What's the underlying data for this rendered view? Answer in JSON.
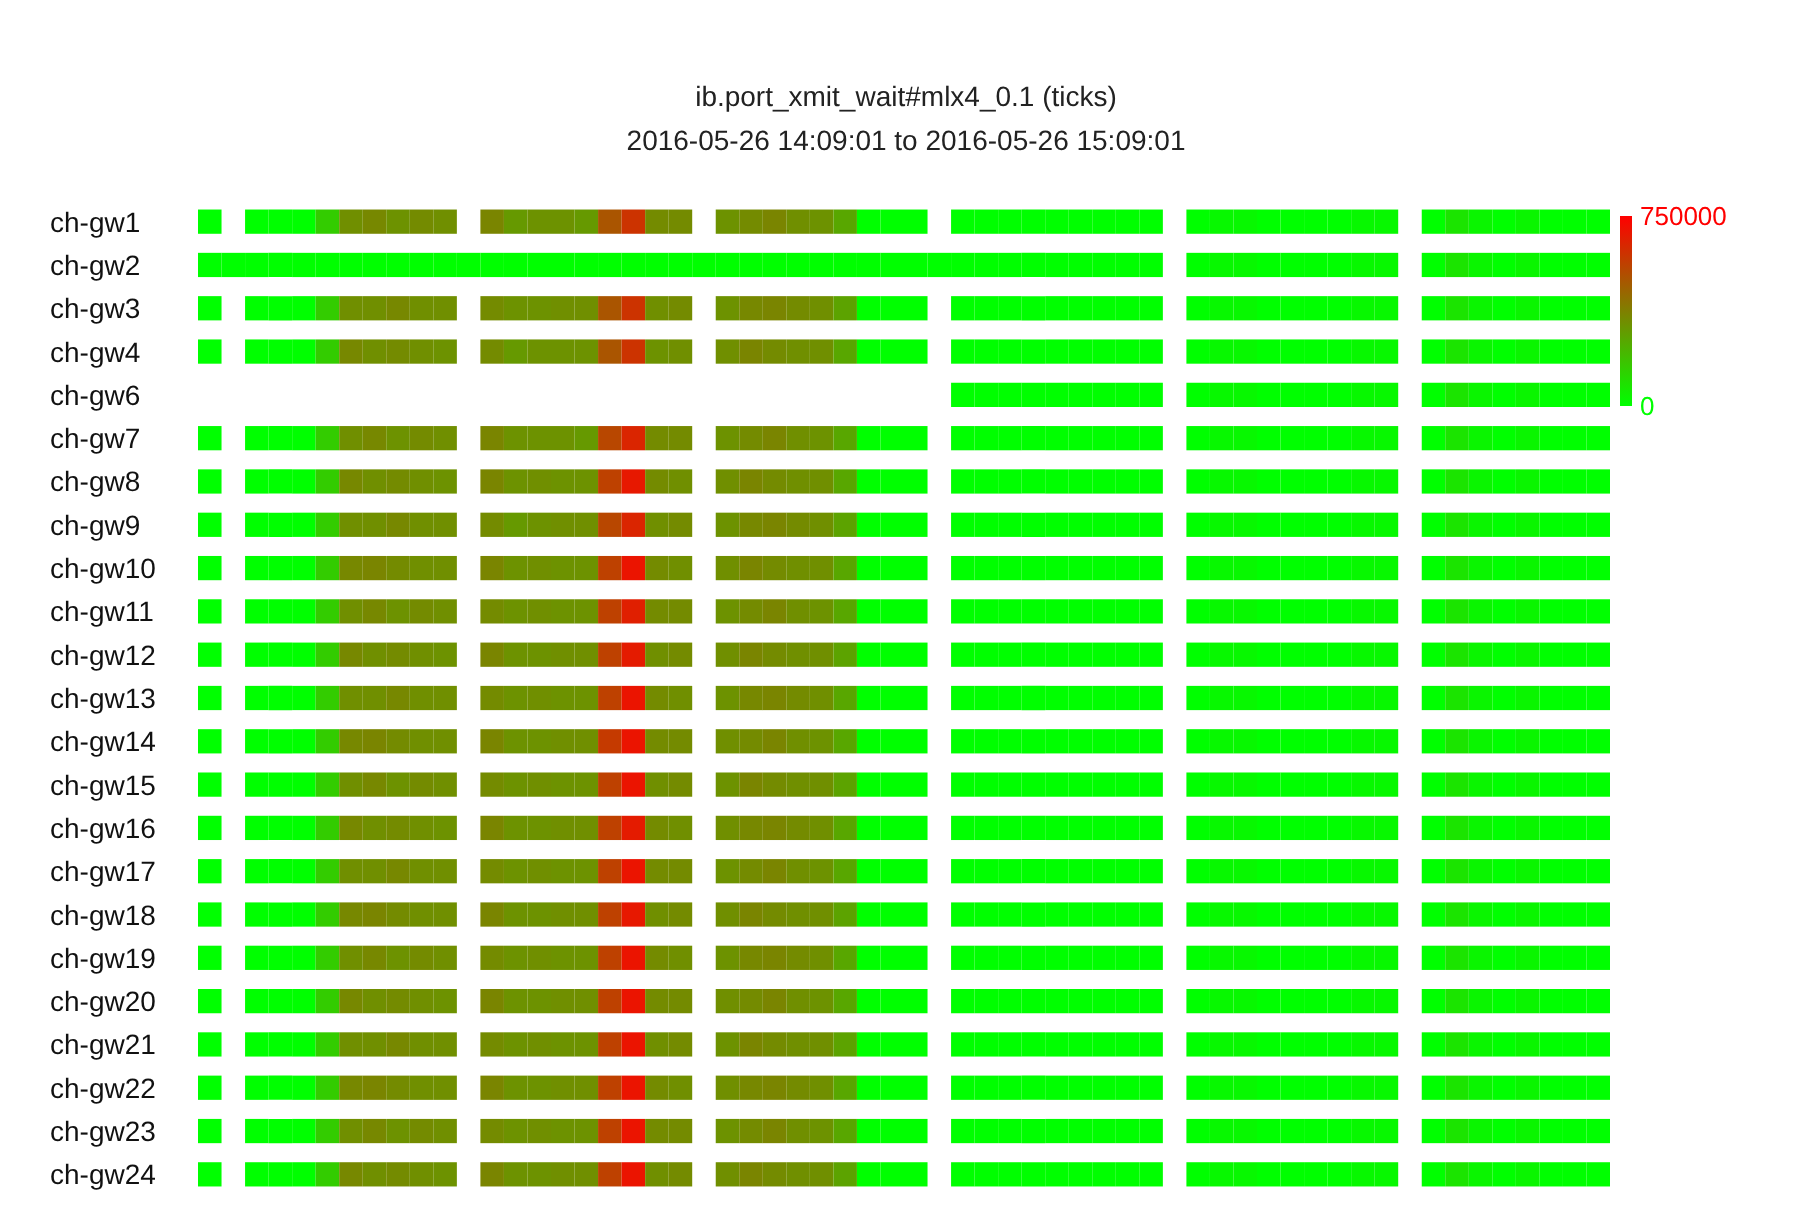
{
  "chart_data": {
    "type": "heatmap",
    "title": "ib.port_xmit_wait#mlx4_0.1 (ticks)",
    "subtitle": "2016-05-26 14:09:01 to 2016-05-26 15:09:01",
    "categories": [
      null,
      null,
      null,
      null,
      null,
      null,
      null,
      null,
      null,
      null,
      null,
      null,
      null,
      null,
      null,
      null,
      null,
      null,
      null,
      null,
      null,
      null,
      null,
      null,
      null,
      null,
      null,
      null,
      null,
      null,
      null,
      null,
      null,
      null,
      null,
      null,
      null,
      null,
      null,
      null,
      null,
      null,
      null,
      null,
      null,
      null,
      null,
      null,
      null,
      null,
      null,
      null,
      null,
      null,
      null,
      null,
      null,
      null,
      null,
      null
    ],
    "y_categories": [
      "ch-gw1",
      "ch-gw2",
      "ch-gw3",
      "ch-gw4",
      "ch-gw6",
      "ch-gw7",
      "ch-gw8",
      "ch-gw9",
      "ch-gw10",
      "ch-gw11",
      "ch-gw12",
      "ch-gw13",
      "ch-gw14",
      "ch-gw15",
      "ch-gw16",
      "ch-gw17",
      "ch-gw18",
      "ch-gw19",
      "ch-gw20",
      "ch-gw21",
      "ch-gw22",
      "ch-gw23",
      "ch-gw24"
    ],
    "cells": [
      [
        0,
        null,
        0,
        0,
        0,
        150000,
        330000,
        350000,
        320000,
        340000,
        330000,
        null,
        360000,
        300000,
        320000,
        320000,
        300000,
        500000,
        600000,
        340000,
        340000,
        null,
        320000,
        340000,
        360000,
        330000,
        320000,
        260000,
        0,
        0,
        0,
        null,
        0,
        0,
        0,
        0,
        0,
        0,
        0,
        0,
        0,
        null,
        0,
        20000,
        20000,
        0,
        0,
        0,
        0,
        20000,
        20000,
        null,
        0,
        80000,
        30000,
        0,
        30000,
        0,
        0,
        0
      ],
      [
        0,
        0,
        0,
        0,
        0,
        0,
        0,
        0,
        0,
        0,
        0,
        0,
        0,
        0,
        0,
        0,
        0,
        0,
        0,
        0,
        0,
        0,
        0,
        0,
        0,
        0,
        0,
        0,
        0,
        0,
        0,
        0,
        0,
        0,
        0,
        0,
        0,
        0,
        0,
        0,
        0,
        null,
        0,
        20000,
        20000,
        0,
        0,
        0,
        0,
        20000,
        20000,
        null,
        0,
        80000,
        30000,
        0,
        30000,
        0,
        0,
        0
      ],
      [
        0,
        null,
        0,
        0,
        0,
        150000,
        330000,
        330000,
        350000,
        330000,
        330000,
        null,
        340000,
        320000,
        320000,
        330000,
        330000,
        500000,
        600000,
        330000,
        340000,
        null,
        320000,
        350000,
        360000,
        340000,
        330000,
        270000,
        0,
        0,
        0,
        null,
        0,
        0,
        0,
        0,
        0,
        0,
        0,
        0,
        0,
        null,
        0,
        20000,
        20000,
        0,
        0,
        0,
        0,
        20000,
        20000,
        null,
        0,
        80000,
        30000,
        0,
        30000,
        0,
        0,
        0
      ],
      [
        0,
        null,
        0,
        0,
        0,
        150000,
        350000,
        330000,
        340000,
        330000,
        320000,
        null,
        340000,
        300000,
        320000,
        320000,
        320000,
        500000,
        600000,
        320000,
        330000,
        null,
        330000,
        360000,
        340000,
        330000,
        330000,
        260000,
        0,
        0,
        0,
        null,
        0,
        0,
        0,
        0,
        0,
        0,
        0,
        0,
        0,
        null,
        0,
        20000,
        20000,
        0,
        0,
        0,
        0,
        20000,
        20000,
        null,
        0,
        80000,
        30000,
        0,
        30000,
        0,
        0,
        0
      ],
      [
        null,
        null,
        null,
        null,
        null,
        null,
        null,
        null,
        null,
        null,
        null,
        null,
        null,
        null,
        null,
        null,
        null,
        null,
        null,
        null,
        null,
        null,
        null,
        null,
        null,
        null,
        null,
        null,
        null,
        null,
        null,
        null,
        0,
        0,
        0,
        0,
        0,
        0,
        0,
        0,
        0,
        null,
        0,
        20000,
        20000,
        0,
        0,
        0,
        0,
        20000,
        20000,
        null,
        0,
        80000,
        30000,
        0,
        30000,
        0,
        0,
        0
      ],
      [
        0,
        null,
        0,
        0,
        0,
        150000,
        330000,
        350000,
        320000,
        340000,
        330000,
        null,
        360000,
        320000,
        320000,
        320000,
        300000,
        540000,
        640000,
        340000,
        340000,
        null,
        320000,
        340000,
        360000,
        330000,
        320000,
        260000,
        0,
        0,
        0,
        null,
        0,
        0,
        0,
        0,
        0,
        0,
        0,
        0,
        0,
        null,
        0,
        20000,
        20000,
        0,
        0,
        0,
        0,
        20000,
        20000,
        null,
        0,
        80000,
        30000,
        0,
        30000,
        0,
        0,
        0
      ],
      [
        0,
        null,
        0,
        0,
        0,
        150000,
        350000,
        330000,
        340000,
        330000,
        320000,
        null,
        360000,
        320000,
        330000,
        320000,
        320000,
        560000,
        680000,
        340000,
        330000,
        null,
        330000,
        360000,
        340000,
        330000,
        330000,
        260000,
        0,
        0,
        0,
        null,
        0,
        0,
        0,
        0,
        0,
        0,
        0,
        0,
        0,
        null,
        0,
        20000,
        20000,
        0,
        0,
        0,
        0,
        20000,
        20000,
        null,
        0,
        80000,
        30000,
        0,
        30000,
        0,
        0,
        0
      ],
      [
        0,
        null,
        0,
        0,
        0,
        150000,
        330000,
        330000,
        350000,
        330000,
        330000,
        null,
        340000,
        300000,
        320000,
        330000,
        330000,
        540000,
        640000,
        330000,
        340000,
        null,
        320000,
        350000,
        360000,
        340000,
        330000,
        270000,
        0,
        0,
        0,
        null,
        0,
        0,
        0,
        0,
        0,
        0,
        0,
        0,
        0,
        null,
        0,
        20000,
        20000,
        0,
        0,
        0,
        0,
        20000,
        20000,
        null,
        0,
        80000,
        30000,
        0,
        30000,
        0,
        0,
        0
      ],
      [
        0,
        null,
        0,
        0,
        0,
        150000,
        350000,
        360000,
        340000,
        330000,
        330000,
        null,
        360000,
        320000,
        330000,
        320000,
        320000,
        560000,
        690000,
        340000,
        330000,
        null,
        330000,
        360000,
        340000,
        330000,
        330000,
        260000,
        0,
        0,
        0,
        null,
        0,
        0,
        0,
        0,
        0,
        0,
        0,
        0,
        0,
        null,
        0,
        20000,
        20000,
        0,
        0,
        0,
        0,
        20000,
        20000,
        null,
        0,
        80000,
        30000,
        0,
        30000,
        0,
        0,
        0
      ],
      [
        0,
        null,
        0,
        0,
        0,
        150000,
        330000,
        350000,
        320000,
        340000,
        330000,
        null,
        340000,
        320000,
        330000,
        320000,
        320000,
        560000,
        660000,
        340000,
        340000,
        null,
        320000,
        340000,
        360000,
        330000,
        320000,
        260000,
        0,
        0,
        0,
        null,
        0,
        0,
        0,
        0,
        0,
        0,
        0,
        0,
        0,
        null,
        0,
        20000,
        20000,
        0,
        0,
        0,
        0,
        20000,
        20000,
        null,
        0,
        80000,
        30000,
        0,
        30000,
        0,
        0,
        0
      ],
      [
        0,
        null,
        0,
        0,
        0,
        150000,
        350000,
        330000,
        340000,
        330000,
        320000,
        null,
        360000,
        320000,
        320000,
        330000,
        330000,
        560000,
        670000,
        330000,
        340000,
        null,
        330000,
        360000,
        340000,
        330000,
        330000,
        270000,
        0,
        0,
        0,
        null,
        0,
        0,
        0,
        0,
        0,
        0,
        0,
        0,
        0,
        null,
        0,
        20000,
        20000,
        0,
        0,
        0,
        0,
        20000,
        20000,
        null,
        0,
        80000,
        30000,
        0,
        30000,
        0,
        0,
        0
      ],
      [
        0,
        null,
        0,
        0,
        0,
        150000,
        330000,
        330000,
        350000,
        330000,
        330000,
        null,
        340000,
        320000,
        330000,
        320000,
        320000,
        560000,
        690000,
        340000,
        330000,
        null,
        320000,
        350000,
        360000,
        340000,
        330000,
        260000,
        0,
        0,
        0,
        null,
        0,
        0,
        0,
        0,
        0,
        0,
        0,
        0,
        0,
        null,
        0,
        20000,
        20000,
        0,
        0,
        0,
        0,
        20000,
        20000,
        null,
        0,
        80000,
        30000,
        0,
        30000,
        0,
        0,
        0
      ],
      [
        0,
        null,
        0,
        0,
        0,
        150000,
        350000,
        360000,
        340000,
        330000,
        330000,
        null,
        360000,
        320000,
        320000,
        330000,
        330000,
        580000,
        690000,
        340000,
        340000,
        null,
        330000,
        340000,
        360000,
        330000,
        320000,
        260000,
        0,
        0,
        0,
        null,
        0,
        0,
        0,
        0,
        0,
        0,
        0,
        0,
        0,
        null,
        0,
        20000,
        20000,
        0,
        0,
        0,
        0,
        20000,
        20000,
        null,
        0,
        80000,
        30000,
        0,
        30000,
        0,
        0,
        0
      ],
      [
        0,
        null,
        0,
        0,
        0,
        150000,
        330000,
        350000,
        320000,
        340000,
        330000,
        null,
        340000,
        320000,
        330000,
        320000,
        320000,
        560000,
        690000,
        330000,
        340000,
        null,
        320000,
        360000,
        340000,
        330000,
        330000,
        270000,
        0,
        0,
        0,
        null,
        0,
        0,
        0,
        0,
        0,
        0,
        0,
        0,
        0,
        null,
        0,
        20000,
        20000,
        0,
        0,
        0,
        0,
        20000,
        20000,
        null,
        0,
        80000,
        30000,
        0,
        30000,
        0,
        0,
        0
      ],
      [
        0,
        null,
        0,
        0,
        0,
        150000,
        350000,
        330000,
        340000,
        330000,
        320000,
        null,
        360000,
        320000,
        320000,
        330000,
        330000,
        560000,
        670000,
        340000,
        330000,
        null,
        330000,
        350000,
        360000,
        340000,
        330000,
        260000,
        0,
        0,
        0,
        null,
        0,
        0,
        0,
        0,
        0,
        0,
        0,
        0,
        0,
        null,
        0,
        20000,
        20000,
        0,
        0,
        0,
        0,
        20000,
        20000,
        null,
        0,
        80000,
        30000,
        0,
        30000,
        0,
        0,
        0
      ],
      [
        0,
        null,
        0,
        0,
        0,
        150000,
        330000,
        330000,
        350000,
        330000,
        330000,
        null,
        340000,
        320000,
        330000,
        320000,
        320000,
        560000,
        690000,
        340000,
        340000,
        null,
        320000,
        340000,
        360000,
        330000,
        320000,
        260000,
        0,
        0,
        0,
        null,
        0,
        0,
        0,
        0,
        0,
        0,
        0,
        0,
        0,
        null,
        0,
        20000,
        20000,
        0,
        0,
        0,
        0,
        20000,
        20000,
        null,
        0,
        80000,
        30000,
        0,
        30000,
        0,
        0,
        0
      ],
      [
        0,
        null,
        0,
        0,
        0,
        150000,
        350000,
        360000,
        340000,
        330000,
        330000,
        null,
        360000,
        320000,
        320000,
        330000,
        330000,
        560000,
        680000,
        330000,
        340000,
        null,
        330000,
        360000,
        340000,
        330000,
        330000,
        270000,
        0,
        0,
        0,
        null,
        0,
        0,
        0,
        0,
        0,
        0,
        0,
        0,
        0,
        null,
        0,
        20000,
        20000,
        0,
        0,
        0,
        0,
        20000,
        20000,
        null,
        0,
        80000,
        30000,
        0,
        30000,
        0,
        0,
        0
      ],
      [
        0,
        null,
        0,
        0,
        0,
        150000,
        330000,
        350000,
        320000,
        340000,
        330000,
        null,
        340000,
        320000,
        330000,
        320000,
        320000,
        560000,
        690000,
        340000,
        330000,
        null,
        320000,
        350000,
        360000,
        340000,
        330000,
        260000,
        0,
        0,
        0,
        null,
        0,
        0,
        0,
        0,
        0,
        0,
        0,
        0,
        0,
        null,
        0,
        20000,
        20000,
        0,
        0,
        0,
        0,
        20000,
        20000,
        null,
        0,
        80000,
        30000,
        0,
        30000,
        0,
        0,
        0
      ],
      [
        0,
        null,
        0,
        0,
        0,
        150000,
        350000,
        330000,
        340000,
        330000,
        320000,
        null,
        360000,
        320000,
        320000,
        330000,
        330000,
        560000,
        690000,
        340000,
        340000,
        null,
        330000,
        340000,
        360000,
        330000,
        320000,
        260000,
        0,
        0,
        0,
        null,
        0,
        0,
        0,
        0,
        0,
        0,
        0,
        0,
        0,
        null,
        0,
        20000,
        20000,
        0,
        0,
        0,
        0,
        20000,
        20000,
        null,
        0,
        80000,
        30000,
        0,
        30000,
        0,
        0,
        0
      ],
      [
        0,
        null,
        0,
        0,
        0,
        150000,
        330000,
        330000,
        350000,
        330000,
        330000,
        null,
        340000,
        320000,
        330000,
        320000,
        320000,
        560000,
        690000,
        330000,
        340000,
        null,
        320000,
        360000,
        340000,
        330000,
        330000,
        270000,
        0,
        0,
        0,
        null,
        0,
        0,
        0,
        0,
        0,
        0,
        0,
        0,
        0,
        null,
        0,
        20000,
        20000,
        0,
        0,
        0,
        0,
        20000,
        20000,
        null,
        0,
        80000,
        30000,
        0,
        30000,
        0,
        0,
        0
      ],
      [
        0,
        null,
        0,
        0,
        0,
        150000,
        350000,
        360000,
        340000,
        330000,
        330000,
        null,
        360000,
        320000,
        320000,
        330000,
        330000,
        560000,
        690000,
        340000,
        330000,
        null,
        330000,
        350000,
        360000,
        340000,
        330000,
        260000,
        0,
        0,
        0,
        null,
        0,
        0,
        0,
        0,
        0,
        0,
        0,
        0,
        0,
        null,
        0,
        20000,
        20000,
        0,
        0,
        0,
        0,
        20000,
        20000,
        null,
        0,
        80000,
        30000,
        0,
        30000,
        0,
        0,
        0
      ],
      [
        0,
        null,
        0,
        0,
        0,
        150000,
        330000,
        350000,
        320000,
        340000,
        330000,
        null,
        340000,
        320000,
        330000,
        320000,
        320000,
        560000,
        690000,
        340000,
        340000,
        null,
        320000,
        340000,
        360000,
        330000,
        320000,
        260000,
        0,
        0,
        0,
        null,
        0,
        0,
        0,
        0,
        0,
        0,
        0,
        0,
        0,
        null,
        0,
        20000,
        20000,
        0,
        0,
        0,
        0,
        20000,
        20000,
        null,
        0,
        80000,
        30000,
        0,
        30000,
        0,
        0,
        0
      ],
      [
        0,
        null,
        0,
        0,
        0,
        150000,
        350000,
        330000,
        340000,
        330000,
        320000,
        null,
        360000,
        320000,
        320000,
        330000,
        330000,
        560000,
        690000,
        330000,
        340000,
        null,
        330000,
        360000,
        340000,
        330000,
        330000,
        270000,
        0,
        0,
        0,
        null,
        0,
        0,
        0,
        0,
        0,
        0,
        0,
        0,
        0,
        null,
        0,
        20000,
        20000,
        0,
        0,
        0,
        0,
        20000,
        20000,
        null,
        0,
        80000,
        30000,
        0,
        30000,
        0,
        0,
        0
      ]
    ],
    "clim": [
      0,
      750000
    ],
    "cticks": [
      0,
      750000
    ],
    "tick_labels": "y"
  }
}
